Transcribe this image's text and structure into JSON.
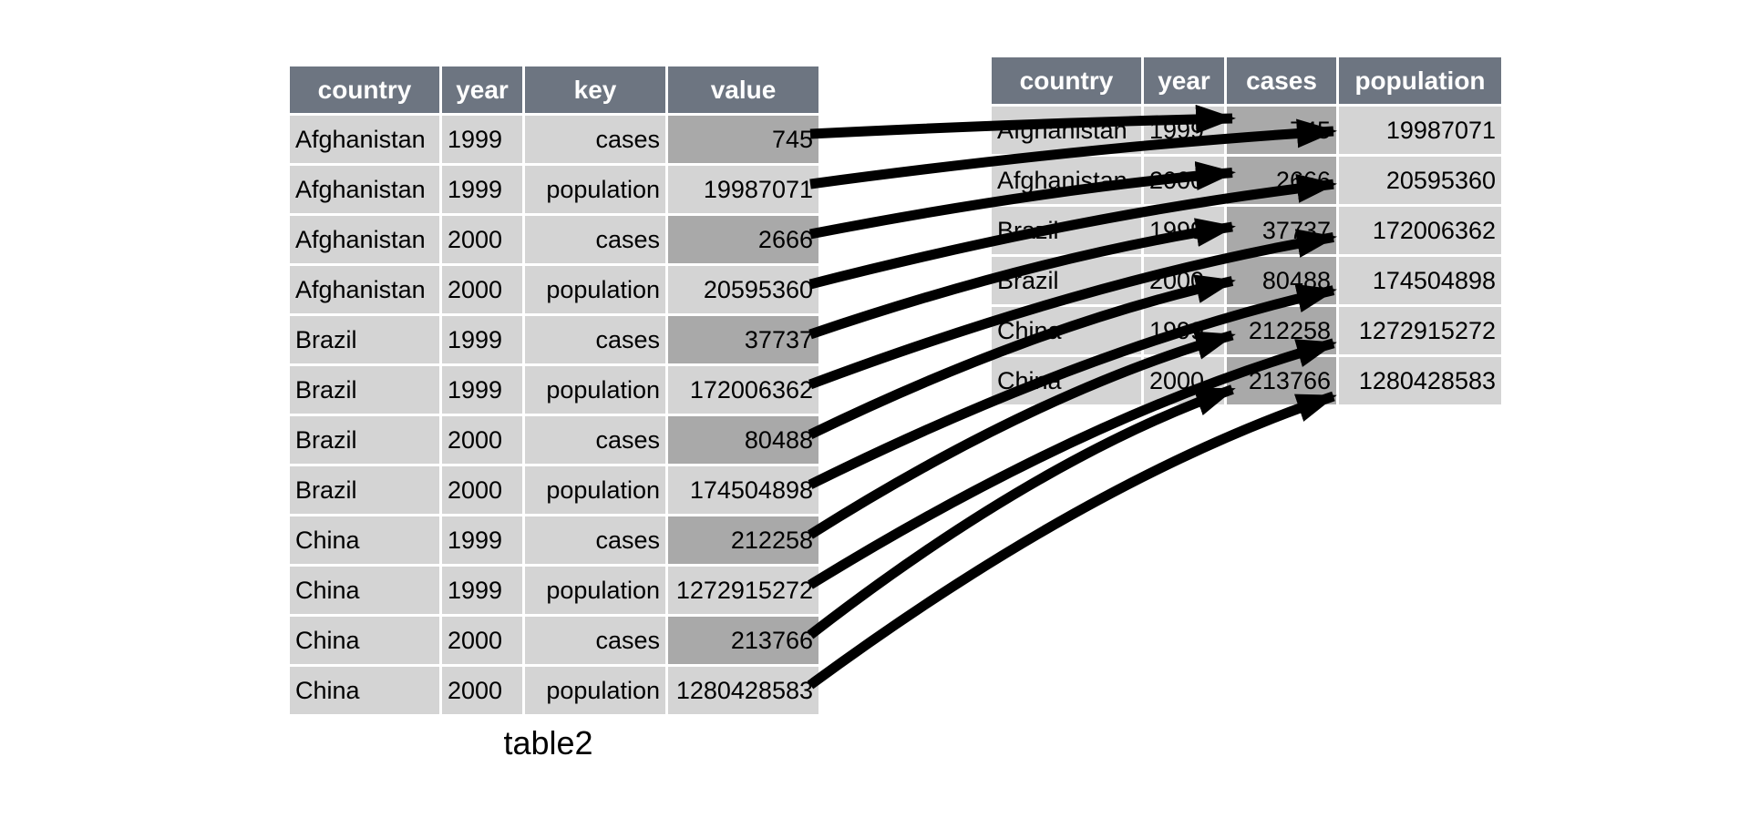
{
  "colors": {
    "header_bg": "#6d7581",
    "header_text": "#ffffff",
    "cell_bg": "#d4d4d4",
    "highlight_bg": "#a9a9a9",
    "cell_text": "#000000",
    "arrow": "#000000"
  },
  "left_table": {
    "caption": "table2",
    "headers": [
      "country",
      "year",
      "key",
      "value"
    ],
    "rows": [
      [
        "Afghanistan",
        "1999",
        "cases",
        "745"
      ],
      [
        "Afghanistan",
        "1999",
        "population",
        "19987071"
      ],
      [
        "Afghanistan",
        "2000",
        "cases",
        "2666"
      ],
      [
        "Afghanistan",
        "2000",
        "population",
        "20595360"
      ],
      [
        "Brazil",
        "1999",
        "cases",
        "37737"
      ],
      [
        "Brazil",
        "1999",
        "population",
        "172006362"
      ],
      [
        "Brazil",
        "2000",
        "cases",
        "80488"
      ],
      [
        "Brazil",
        "2000",
        "population",
        "174504898"
      ],
      [
        "China",
        "1999",
        "cases",
        "212258"
      ],
      [
        "China",
        "1999",
        "population",
        "1272915272"
      ],
      [
        "China",
        "2000",
        "cases",
        "213766"
      ],
      [
        "China",
        "2000",
        "population",
        "1280428583"
      ]
    ]
  },
  "right_table": {
    "headers": [
      "country",
      "year",
      "cases",
      "population"
    ],
    "rows": [
      [
        "Afghanistan",
        "1999",
        "745",
        "19987071"
      ],
      [
        "Afghanistan",
        "2000",
        "2666",
        "20595360"
      ],
      [
        "Brazil",
        "1999",
        "37737",
        "172006362"
      ],
      [
        "Brazil",
        "2000",
        "80488",
        "174504898"
      ],
      [
        "China",
        "1999",
        "212258",
        "1272915272"
      ],
      [
        "China",
        "2000",
        "213766",
        "1280428583"
      ]
    ]
  },
  "arrows": [
    {
      "value": "745",
      "from_row": 1,
      "to_row": 1,
      "to_col": "cases"
    },
    {
      "value": "19987071",
      "from_row": 2,
      "to_row": 1,
      "to_col": "population"
    },
    {
      "value": "2666",
      "from_row": 3,
      "to_row": 2,
      "to_col": "cases"
    },
    {
      "value": "20595360",
      "from_row": 4,
      "to_row": 2,
      "to_col": "population"
    },
    {
      "value": "37737",
      "from_row": 5,
      "to_row": 3,
      "to_col": "cases"
    },
    {
      "value": "172006362",
      "from_row": 6,
      "to_row": 3,
      "to_col": "population"
    },
    {
      "value": "80488",
      "from_row": 7,
      "to_row": 4,
      "to_col": "cases"
    },
    {
      "value": "174504898",
      "from_row": 8,
      "to_row": 4,
      "to_col": "population"
    },
    {
      "value": "212258",
      "from_row": 9,
      "to_row": 5,
      "to_col": "cases"
    },
    {
      "value": "1272915272",
      "from_row": 10,
      "to_row": 5,
      "to_col": "population"
    },
    {
      "value": "213766",
      "from_row": 11,
      "to_row": 6,
      "to_col": "cases"
    },
    {
      "value": "1280428583",
      "from_row": 12,
      "to_row": 6,
      "to_col": "population"
    }
  ]
}
